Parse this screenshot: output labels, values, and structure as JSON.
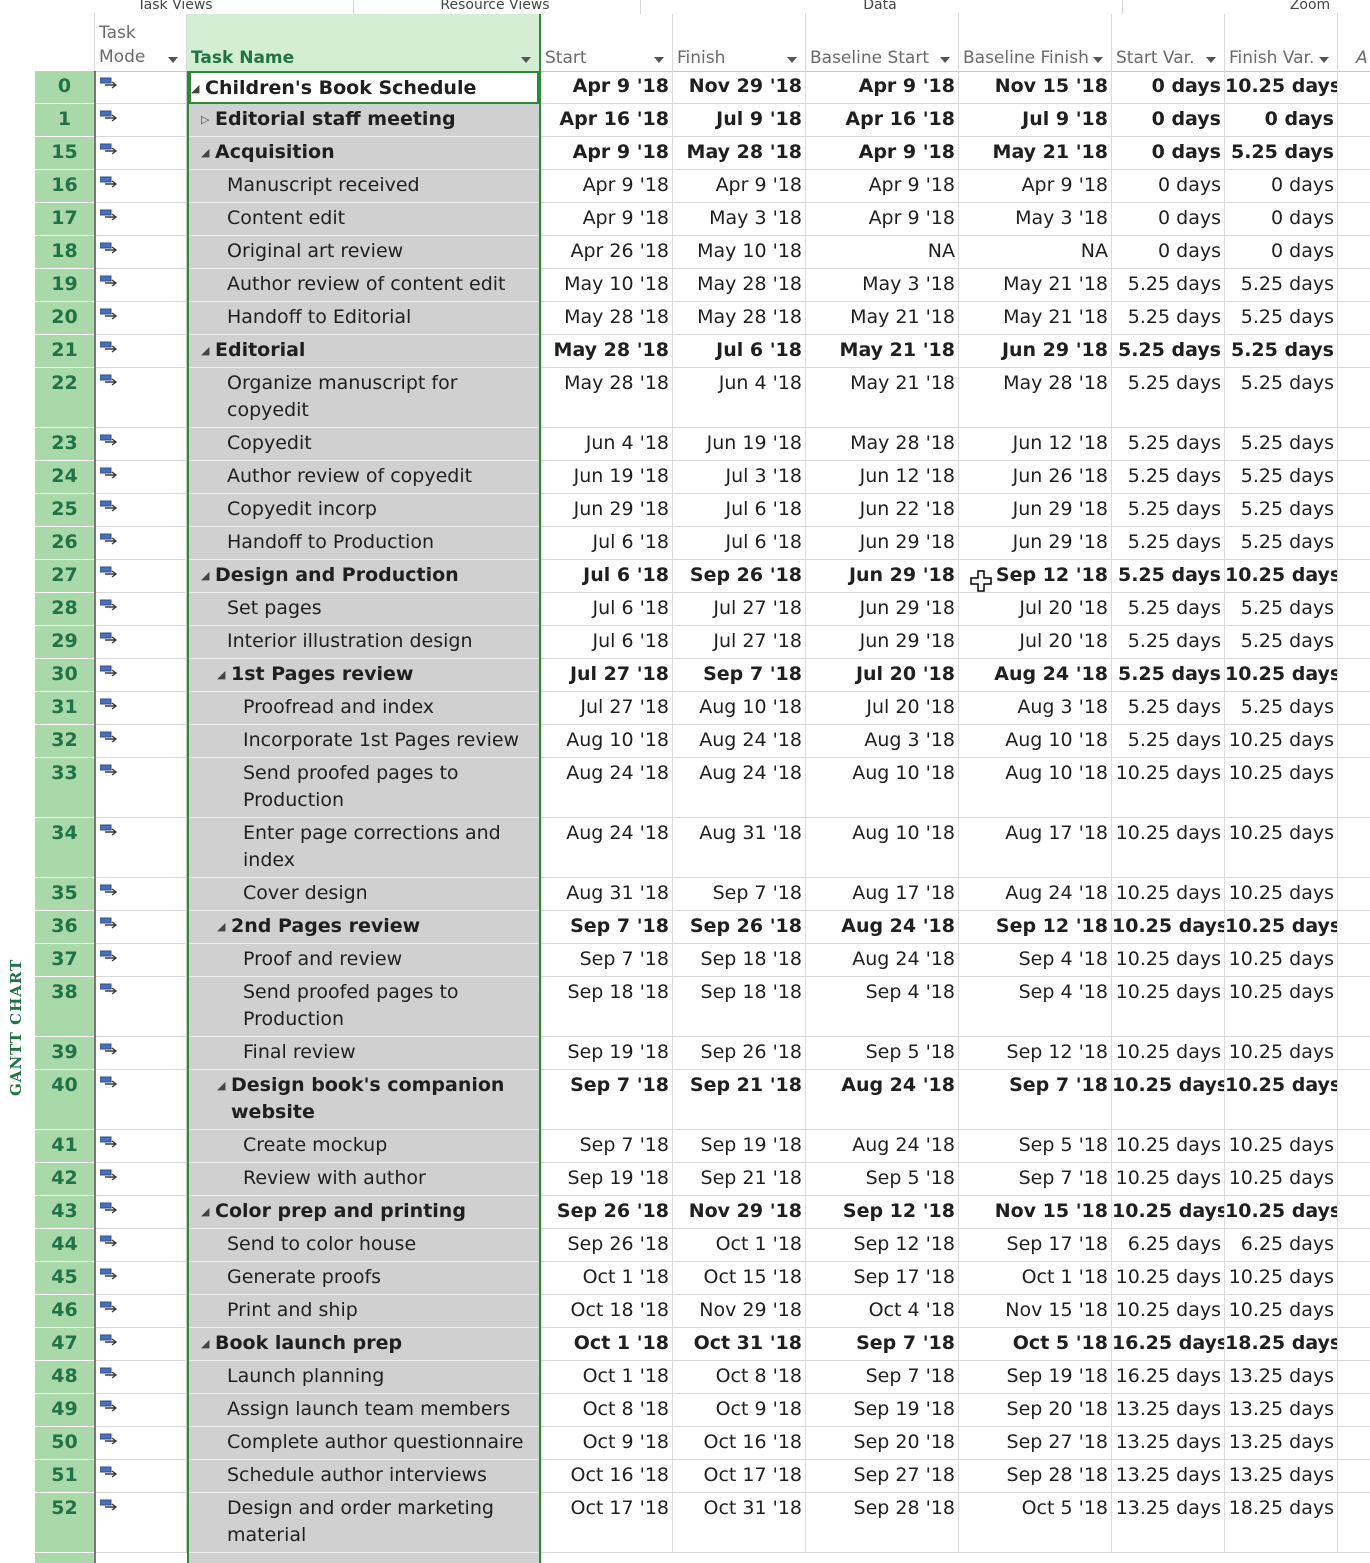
{
  "ribbon": {
    "groups": [
      "Task Views",
      "Resource Views",
      "Data",
      "Zoom"
    ]
  },
  "headers": {
    "mode": "Task Mode",
    "name": "Task Name",
    "start": "Start",
    "finish": "Finish",
    "bstart": "Baseline Start",
    "bfinish": "Baseline Finish",
    "svar": "Start Var.",
    "fvar": "Finish Var.",
    "extra": "A"
  },
  "view_label": "GANTT CHART",
  "colors": {
    "accent": "#217346",
    "id_band": "#a9d8a9",
    "name_band": "#d0d0d0"
  },
  "rows": [
    {
      "id": "0",
      "name": "Children's Book Schedule",
      "level": 0,
      "summary": true,
      "toggle": "expanded",
      "start": "Apr 9 '18",
      "finish": "Nov 29 '18",
      "bstart": "Apr 9 '18",
      "bfinish": "Nov 15 '18",
      "svar": "0 days",
      "fvar": "10.25 days",
      "lines": 1
    },
    {
      "id": "1",
      "name": "Editorial staff meeting",
      "level": 1,
      "summary": true,
      "toggle": "collapsed",
      "start": "Apr 16 '18",
      "finish": "Jul 9 '18",
      "bstart": "Apr 16 '18",
      "bfinish": "Jul 9 '18",
      "svar": "0 days",
      "fvar": "0 days",
      "lines": 1
    },
    {
      "id": "15",
      "name": "Acquisition",
      "level": 1,
      "summary": true,
      "toggle": "expanded",
      "start": "Apr 9 '18",
      "finish": "May 28 '18",
      "bstart": "Apr 9 '18",
      "bfinish": "May 21 '18",
      "svar": "0 days",
      "fvar": "5.25 days",
      "lines": 1
    },
    {
      "id": "16",
      "name": "Manuscript received",
      "level": 2,
      "summary": false,
      "toggle": "",
      "start": "Apr 9 '18",
      "finish": "Apr 9 '18",
      "bstart": "Apr 9 '18",
      "bfinish": "Apr 9 '18",
      "svar": "0 days",
      "fvar": "0 days",
      "lines": 1
    },
    {
      "id": "17",
      "name": "Content edit",
      "level": 2,
      "summary": false,
      "toggle": "",
      "start": "Apr 9 '18",
      "finish": "May 3 '18",
      "bstart": "Apr 9 '18",
      "bfinish": "May 3 '18",
      "svar": "0 days",
      "fvar": "0 days",
      "lines": 1
    },
    {
      "id": "18",
      "name": "Original art review",
      "level": 2,
      "summary": false,
      "toggle": "",
      "start": "Apr 26 '18",
      "finish": "May 10 '18",
      "bstart": "NA",
      "bfinish": "NA",
      "svar": "0 days",
      "fvar": "0 days",
      "lines": 1
    },
    {
      "id": "19",
      "name": "Author review of content edit",
      "level": 2,
      "summary": false,
      "toggle": "",
      "start": "May 10 '18",
      "finish": "May 28 '18",
      "bstart": "May 3 '18",
      "bfinish": "May 21 '18",
      "svar": "5.25 days",
      "fvar": "5.25 days",
      "lines": 1
    },
    {
      "id": "20",
      "name": "Handoff to Editorial",
      "level": 2,
      "summary": false,
      "toggle": "",
      "start": "May 28 '18",
      "finish": "May 28 '18",
      "bstart": "May 21 '18",
      "bfinish": "May 21 '18",
      "svar": "5.25 days",
      "fvar": "5.25 days",
      "lines": 1
    },
    {
      "id": "21",
      "name": "Editorial",
      "level": 1,
      "summary": true,
      "toggle": "expanded",
      "start": "May 28 '18",
      "finish": "Jul 6 '18",
      "bstart": "May 21 '18",
      "bfinish": "Jun 29 '18",
      "svar": "5.25 days",
      "fvar": "5.25 days",
      "lines": 1
    },
    {
      "id": "22",
      "name": "Organize manuscript for copyedit",
      "level": 2,
      "summary": false,
      "toggle": "",
      "start": "May 28 '18",
      "finish": "Jun 4 '18",
      "bstart": "May 21 '18",
      "bfinish": "May 28 '18",
      "svar": "5.25 days",
      "fvar": "5.25 days",
      "lines": 2
    },
    {
      "id": "23",
      "name": "Copyedit",
      "level": 2,
      "summary": false,
      "toggle": "",
      "start": "Jun 4 '18",
      "finish": "Jun 19 '18",
      "bstart": "May 28 '18",
      "bfinish": "Jun 12 '18",
      "svar": "5.25 days",
      "fvar": "5.25 days",
      "lines": 1
    },
    {
      "id": "24",
      "name": "Author review of copyedit",
      "level": 2,
      "summary": false,
      "toggle": "",
      "start": "Jun 19 '18",
      "finish": "Jul 3 '18",
      "bstart": "Jun 12 '18",
      "bfinish": "Jun 26 '18",
      "svar": "5.25 days",
      "fvar": "5.25 days",
      "lines": 1
    },
    {
      "id": "25",
      "name": "Copyedit incorp",
      "level": 2,
      "summary": false,
      "toggle": "",
      "start": "Jun 29 '18",
      "finish": "Jul 6 '18",
      "bstart": "Jun 22 '18",
      "bfinish": "Jun 29 '18",
      "svar": "5.25 days",
      "fvar": "5.25 days",
      "lines": 1
    },
    {
      "id": "26",
      "name": "Handoff to Production",
      "level": 2,
      "summary": false,
      "toggle": "",
      "start": "Jul 6 '18",
      "finish": "Jul 6 '18",
      "bstart": "Jun 29 '18",
      "bfinish": "Jun 29 '18",
      "svar": "5.25 days",
      "fvar": "5.25 days",
      "lines": 1
    },
    {
      "id": "27",
      "name": "Design and Production",
      "level": 1,
      "summary": true,
      "toggle": "expanded",
      "start": "Jul 6 '18",
      "finish": "Sep 26 '18",
      "bstart": "Jun 29 '18",
      "bfinish": "Sep 12 '18",
      "svar": "5.25 days",
      "fvar": "10.25 days",
      "lines": 1
    },
    {
      "id": "28",
      "name": "Set pages",
      "level": 2,
      "summary": false,
      "toggle": "",
      "start": "Jul 6 '18",
      "finish": "Jul 27 '18",
      "bstart": "Jun 29 '18",
      "bfinish": "Jul 20 '18",
      "svar": "5.25 days",
      "fvar": "5.25 days",
      "lines": 1
    },
    {
      "id": "29",
      "name": "Interior illustration design",
      "level": 2,
      "summary": false,
      "toggle": "",
      "start": "Jul 6 '18",
      "finish": "Jul 27 '18",
      "bstart": "Jun 29 '18",
      "bfinish": "Jul 20 '18",
      "svar": "5.25 days",
      "fvar": "5.25 days",
      "lines": 1
    },
    {
      "id": "30",
      "name": "1st Pages review",
      "level": 2,
      "summary": true,
      "toggle": "expanded",
      "start": "Jul 27 '18",
      "finish": "Sep 7 '18",
      "bstart": "Jul 20 '18",
      "bfinish": "Aug 24 '18",
      "svar": "5.25 days",
      "fvar": "10.25 days",
      "lines": 1
    },
    {
      "id": "31",
      "name": "Proofread and index",
      "level": 3,
      "summary": false,
      "toggle": "",
      "start": "Jul 27 '18",
      "finish": "Aug 10 '18",
      "bstart": "Jul 20 '18",
      "bfinish": "Aug 3 '18",
      "svar": "5.25 days",
      "fvar": "5.25 days",
      "lines": 1
    },
    {
      "id": "32",
      "name": "Incorporate 1st Pages review",
      "level": 3,
      "summary": false,
      "toggle": "",
      "start": "Aug 10 '18",
      "finish": "Aug 24 '18",
      "bstart": "Aug 3 '18",
      "bfinish": "Aug 10 '18",
      "svar": "5.25 days",
      "fvar": "10.25 days",
      "lines": 1
    },
    {
      "id": "33",
      "name": "Send proofed pages to Production",
      "level": 3,
      "summary": false,
      "toggle": "",
      "start": "Aug 24 '18",
      "finish": "Aug 24 '18",
      "bstart": "Aug 10 '18",
      "bfinish": "Aug 10 '18",
      "svar": "10.25 days",
      "fvar": "10.25 days",
      "lines": 2
    },
    {
      "id": "34",
      "name": "Enter page corrections and index",
      "level": 3,
      "summary": false,
      "toggle": "",
      "start": "Aug 24 '18",
      "finish": "Aug 31 '18",
      "bstart": "Aug 10 '18",
      "bfinish": "Aug 17 '18",
      "svar": "10.25 days",
      "fvar": "10.25 days",
      "lines": 2
    },
    {
      "id": "35",
      "name": "Cover design",
      "level": 3,
      "summary": false,
      "toggle": "",
      "start": "Aug 31 '18",
      "finish": "Sep 7 '18",
      "bstart": "Aug 17 '18",
      "bfinish": "Aug 24 '18",
      "svar": "10.25 days",
      "fvar": "10.25 days",
      "lines": 1
    },
    {
      "id": "36",
      "name": "2nd Pages review",
      "level": 2,
      "summary": true,
      "toggle": "expanded",
      "start": "Sep 7 '18",
      "finish": "Sep 26 '18",
      "bstart": "Aug 24 '18",
      "bfinish": "Sep 12 '18",
      "svar": "10.25 days",
      "fvar": "10.25 days",
      "lines": 1
    },
    {
      "id": "37",
      "name": "Proof and review",
      "level": 3,
      "summary": false,
      "toggle": "",
      "start": "Sep 7 '18",
      "finish": "Sep 18 '18",
      "bstart": "Aug 24 '18",
      "bfinish": "Sep 4 '18",
      "svar": "10.25 days",
      "fvar": "10.25 days",
      "lines": 1
    },
    {
      "id": "38",
      "name": "Send proofed pages to Production",
      "level": 3,
      "summary": false,
      "toggle": "",
      "start": "Sep 18 '18",
      "finish": "Sep 18 '18",
      "bstart": "Sep 4 '18",
      "bfinish": "Sep 4 '18",
      "svar": "10.25 days",
      "fvar": "10.25 days",
      "lines": 2
    },
    {
      "id": "39",
      "name": "Final review",
      "level": 3,
      "summary": false,
      "toggle": "",
      "start": "Sep 19 '18",
      "finish": "Sep 26 '18",
      "bstart": "Sep 5 '18",
      "bfinish": "Sep 12 '18",
      "svar": "10.25 days",
      "fvar": "10.25 days",
      "lines": 1
    },
    {
      "id": "40",
      "name": "Design book's companion website",
      "level": 2,
      "summary": true,
      "toggle": "expanded",
      "start": "Sep 7 '18",
      "finish": "Sep 21 '18",
      "bstart": "Aug 24 '18",
      "bfinish": "Sep 7 '18",
      "svar": "10.25 days",
      "fvar": "10.25 days",
      "lines": 2
    },
    {
      "id": "41",
      "name": "Create mockup",
      "level": 3,
      "summary": false,
      "toggle": "",
      "start": "Sep 7 '18",
      "finish": "Sep 19 '18",
      "bstart": "Aug 24 '18",
      "bfinish": "Sep 5 '18",
      "svar": "10.25 days",
      "fvar": "10.25 days",
      "lines": 1
    },
    {
      "id": "42",
      "name": "Review with author",
      "level": 3,
      "summary": false,
      "toggle": "",
      "start": "Sep 19 '18",
      "finish": "Sep 21 '18",
      "bstart": "Sep 5 '18",
      "bfinish": "Sep 7 '18",
      "svar": "10.25 days",
      "fvar": "10.25 days",
      "lines": 1
    },
    {
      "id": "43",
      "name": "Color prep and printing",
      "level": 1,
      "summary": true,
      "toggle": "expanded",
      "start": "Sep 26 '18",
      "finish": "Nov 29 '18",
      "bstart": "Sep 12 '18",
      "bfinish": "Nov 15 '18",
      "svar": "10.25 days",
      "fvar": "10.25 days",
      "lines": 1
    },
    {
      "id": "44",
      "name": "Send to color house",
      "level": 2,
      "summary": false,
      "toggle": "",
      "start": "Sep 26 '18",
      "finish": "Oct 1 '18",
      "bstart": "Sep 12 '18",
      "bfinish": "Sep 17 '18",
      "svar": "6.25 days",
      "fvar": "6.25 days",
      "lines": 1
    },
    {
      "id": "45",
      "name": "Generate proofs",
      "level": 2,
      "summary": false,
      "toggle": "",
      "start": "Oct 1 '18",
      "finish": "Oct 15 '18",
      "bstart": "Sep 17 '18",
      "bfinish": "Oct 1 '18",
      "svar": "10.25 days",
      "fvar": "10.25 days",
      "lines": 1
    },
    {
      "id": "46",
      "name": "Print and ship",
      "level": 2,
      "summary": false,
      "toggle": "",
      "start": "Oct 18 '18",
      "finish": "Nov 29 '18",
      "bstart": "Oct 4 '18",
      "bfinish": "Nov 15 '18",
      "svar": "10.25 days",
      "fvar": "10.25 days",
      "lines": 1
    },
    {
      "id": "47",
      "name": "Book launch prep",
      "level": 1,
      "summary": true,
      "toggle": "expanded",
      "start": "Oct 1 '18",
      "finish": "Oct 31 '18",
      "bstart": "Sep 7 '18",
      "bfinish": "Oct 5 '18",
      "svar": "16.25 days",
      "fvar": "18.25 days",
      "lines": 1
    },
    {
      "id": "48",
      "name": "Launch planning",
      "level": 2,
      "summary": false,
      "toggle": "",
      "start": "Oct 1 '18",
      "finish": "Oct 8 '18",
      "bstart": "Sep 7 '18",
      "bfinish": "Sep 19 '18",
      "svar": "16.25 days",
      "fvar": "13.25 days",
      "lines": 1
    },
    {
      "id": "49",
      "name": "Assign launch team members",
      "level": 2,
      "summary": false,
      "toggle": "",
      "start": "Oct 8 '18",
      "finish": "Oct 9 '18",
      "bstart": "Sep 19 '18",
      "bfinish": "Sep 20 '18",
      "svar": "13.25 days",
      "fvar": "13.25 days",
      "lines": 1
    },
    {
      "id": "50",
      "name": "Complete author questionnaire",
      "level": 2,
      "summary": false,
      "toggle": "",
      "start": "Oct 9 '18",
      "finish": "Oct 16 '18",
      "bstart": "Sep 20 '18",
      "bfinish": "Sep 27 '18",
      "svar": "13.25 days",
      "fvar": "13.25 days",
      "lines": 1
    },
    {
      "id": "51",
      "name": "Schedule author interviews",
      "level": 2,
      "summary": false,
      "toggle": "",
      "start": "Oct 16 '18",
      "finish": "Oct 17 '18",
      "bstart": "Sep 27 '18",
      "bfinish": "Sep 28 '18",
      "svar": "13.25 days",
      "fvar": "13.25 days",
      "lines": 1
    },
    {
      "id": "52",
      "name": "Design and order marketing material",
      "level": 2,
      "summary": false,
      "toggle": "",
      "start": "Oct 17 '18",
      "finish": "Oct 31 '18",
      "bstart": "Sep 28 '18",
      "bfinish": "Oct 5 '18",
      "svar": "13.25 days",
      "fvar": "18.25 days",
      "lines": 2
    }
  ]
}
